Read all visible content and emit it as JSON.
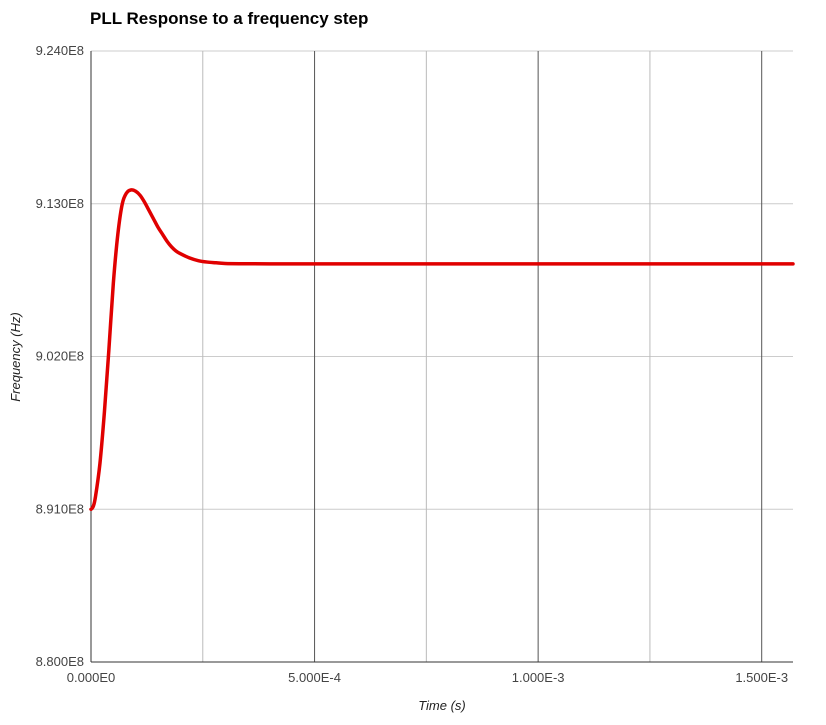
{
  "chart_data": {
    "type": "line",
    "title": "PLL Response to a frequency step",
    "xlabel": "Time (s)",
    "ylabel": "Frequency (Hz)",
    "xlim": [
      0,
      0.00157
    ],
    "ylim": [
      880000000,
      924000000
    ],
    "x_major_ticks": [
      {
        "value": 0,
        "label": "0.000E0"
      },
      {
        "value": 0.0005,
        "label": "5.000E-4"
      },
      {
        "value": 0.001,
        "label": "1.000E-3"
      },
      {
        "value": 0.0015,
        "label": "1.500E-3"
      }
    ],
    "x_minor_ticks": [
      0.00025,
      0.00075,
      0.00125
    ],
    "y_ticks": [
      {
        "value": 880000000,
        "label": "8.800E8"
      },
      {
        "value": 891000000,
        "label": "8.910E8"
      },
      {
        "value": 902000000,
        "label": "9.020E8"
      },
      {
        "value": 913000000,
        "label": "9.130E8"
      },
      {
        "value": 924000000,
        "label": "9.240E8"
      }
    ],
    "grid": true,
    "legend": "none",
    "series": [
      {
        "color": "#e00000",
        "x": [
          0,
          5e-06,
          1e-05,
          2e-05,
          3e-05,
          4e-05,
          5e-05,
          6e-05,
          7e-05,
          8e-05,
          9e-05,
          0.0001,
          0.00011,
          0.00012,
          0.00013,
          0.00014,
          0.00015,
          0.00016,
          0.00017,
          0.00018,
          0.00019,
          0.0002,
          0.00022,
          0.00024,
          0.00026,
          0.00028,
          0.0003,
          0.00035,
          0.0004,
          0.0005,
          0.0006,
          0.0008,
          0.001,
          0.0012,
          0.0014,
          0.00157
        ],
        "values": [
          891000000,
          891200000,
          891900000,
          894300000,
          898000000,
          902500000,
          907300000,
          910800000,
          913000000,
          913800000,
          914000000,
          913900000,
          913600000,
          913100000,
          912500000,
          911900000,
          911300000,
          910800000,
          910300000,
          909900000,
          909600000,
          909400000,
          909100000,
          908900000,
          908800000,
          908750000,
          908700000,
          908680000,
          908670000,
          908670000,
          908670000,
          908670000,
          908670000,
          908670000,
          908670000,
          908670000
        ]
      }
    ]
  }
}
